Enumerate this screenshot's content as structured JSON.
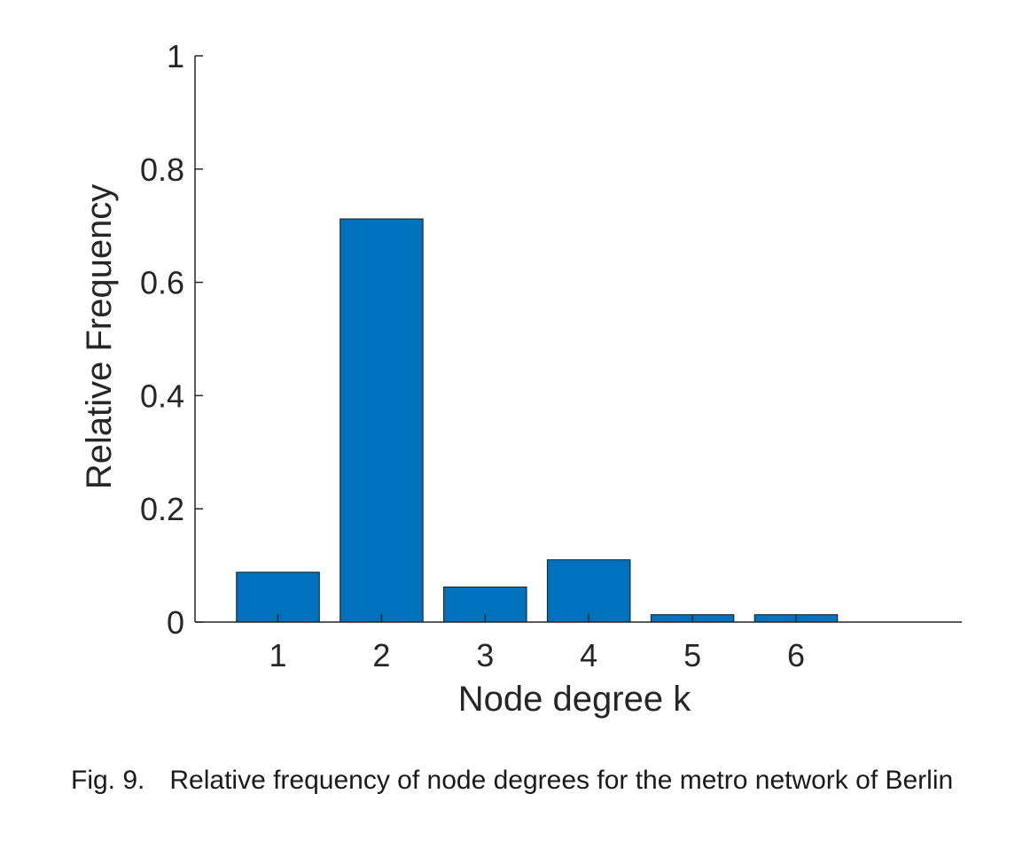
{
  "chart_data": {
    "type": "bar",
    "categories": [
      "1",
      "2",
      "3",
      "4",
      "5",
      "6"
    ],
    "values": [
      0.088,
      0.712,
      0.062,
      0.11,
      0.013,
      0.013
    ],
    "xlabel": "Node degree k",
    "ylabel": "Relative Frequency",
    "xlim": [
      0.2,
      7.6
    ],
    "ylim": [
      0,
      1
    ],
    "yticks": [
      "0",
      "0.2",
      "0.4",
      "0.6",
      "0.8",
      "1"
    ],
    "bar_color": "#0072BD",
    "grid": false,
    "legend": "none"
  },
  "caption": {
    "fig_num": "Fig. 9.",
    "text": "Relative frequency of node degrees for the metro network of Berlin"
  }
}
